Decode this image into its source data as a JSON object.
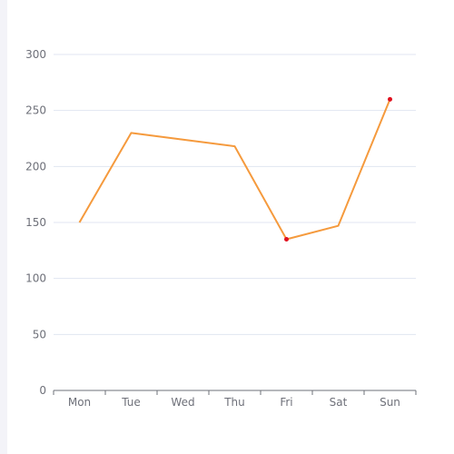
{
  "chart_data": {
    "type": "line",
    "categories": [
      "Mon",
      "Tue",
      "Wed",
      "Thu",
      "Fri",
      "Sat",
      "Sun"
    ],
    "series": [
      {
        "values": [
          150,
          230,
          224,
          218,
          135,
          147,
          260
        ]
      }
    ],
    "highlighted_points": [
      {
        "category": "Fri",
        "value": 135
      },
      {
        "category": "Sun",
        "value": 260
      }
    ],
    "ylim": [
      0,
      300
    ],
    "yticks": [
      0,
      50,
      100,
      150,
      200,
      250,
      300
    ],
    "grid": true,
    "line_color": "#f59a3d",
    "highlight_color": "#e0101e",
    "grid_color": "#e0e6f1",
    "axis_color": "#6e7079"
  }
}
